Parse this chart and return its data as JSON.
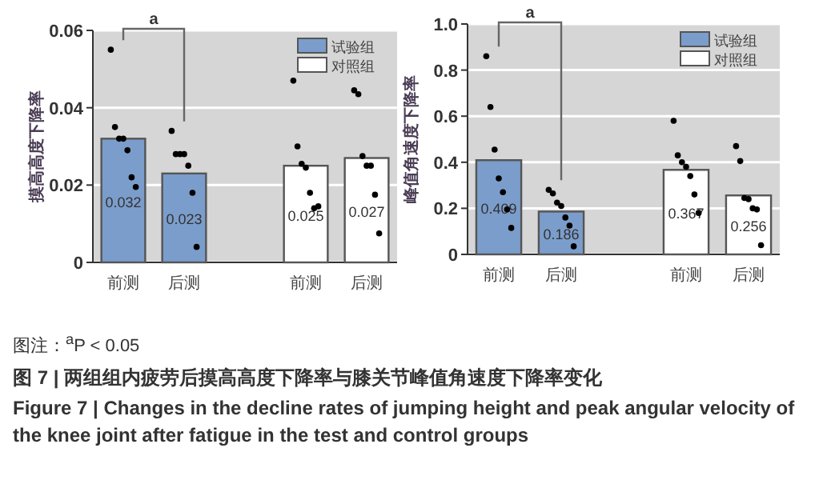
{
  "chart_data": [
    {
      "type": "bar",
      "ylabel": "摸高高度下降率",
      "categories": [
        "前测",
        "后测",
        null,
        "前测",
        "后测"
      ],
      "ylim": [
        0,
        0.06
      ],
      "yticks": [
        0,
        0.02,
        0.04,
        0.06
      ],
      "grid": "y",
      "legend": "top right",
      "annotations": [
        "a"
      ],
      "series": [
        {
          "name": "试验组",
          "color": "#7b9dcb",
          "values": [
            0.032,
            0.023,
            null,
            null,
            null
          ],
          "value_labels": [
            "0.032",
            "0.023",
            null,
            null,
            null
          ]
        },
        {
          "name": "对照组",
          "color": "#ffffff",
          "values": [
            null,
            null,
            null,
            0.025,
            0.027
          ],
          "value_labels": [
            null,
            null,
            null,
            "0.025",
            "0.027"
          ]
        },
        {
          "type": "scatter",
          "color": "#000000",
          "values": [
            0.055,
            0.034,
            null,
            0.047,
            0.0445
          ]
        },
        {
          "type": "scatter",
          "color": "#000000",
          "values": [
            0.035,
            0.028,
            null,
            0.03,
            0.0435
          ]
        },
        {
          "type": "scatter",
          "color": "#000000",
          "values": [
            0.032,
            0.028,
            null,
            0.0255,
            0.0275
          ]
        },
        {
          "type": "scatter",
          "color": "#000000",
          "values": [
            0.032,
            0.028,
            null,
            0.0245,
            0.025
          ]
        },
        {
          "type": "scatter",
          "color": "#000000",
          "values": [
            0.029,
            0.025,
            null,
            0.018,
            0.025
          ]
        },
        {
          "type": "scatter",
          "color": "#000000",
          "values": [
            0.022,
            0.018,
            null,
            0.014,
            0.0175
          ]
        },
        {
          "type": "scatter",
          "color": "#000000",
          "values": [
            0.0195,
            0.004,
            null,
            0.0145,
            0.0075
          ]
        }
      ]
    },
    {
      "type": "bar",
      "ylabel": "峰值角速度下降率",
      "categories": [
        "前测",
        "后测",
        null,
        "前测",
        "后测"
      ],
      "ylim": [
        0,
        1.0
      ],
      "yticks": [
        0,
        0.2,
        0.4,
        0.6,
        0.8,
        {
          "value": 1.0,
          "label": "1.0"
        }
      ],
      "grid": "y",
      "legend": "top right",
      "annotations": [
        "a",
        "图注：$^{a}$P < 0.05",
        "图 7 | 两组组内疲劳后摸高高度下降率与膝关节峰值角速度下降率变化",
        "Figure 7 | Changes in the decline rates of jumping height and peak angular velocity of the knee joint after fatigue in the test and control groups"
      ],
      "series": [
        {
          "name": "试验组",
          "color": "#7b9dcb",
          "values": [
            0.409,
            0.186,
            null,
            null,
            null
          ],
          "value_labels": [
            "0.409",
            "0.186",
            null,
            null,
            null
          ]
        },
        {
          "name": "对照组",
          "color": "#ffffff",
          "values": [
            null,
            null,
            null,
            0.367,
            0.256
          ],
          "value_labels": [
            null,
            null,
            null,
            "0.367",
            "0.256"
          ]
        },
        {
          "type": "scatter",
          "color": "#000000",
          "values": [
            0.86,
            0.28,
            null,
            0.58,
            0.47
          ]
        },
        {
          "type": "scatter",
          "color": "#000000",
          "values": [
            0.64,
            0.265,
            null,
            0.43,
            0.405
          ]
        },
        {
          "type": "scatter",
          "color": "#000000",
          "values": [
            0.455,
            0.225,
            null,
            0.4,
            0.245
          ]
        },
        {
          "type": "scatter",
          "color": "#000000",
          "values": [
            0.33,
            0.21,
            null,
            0.38,
            0.24
          ]
        },
        {
          "type": "scatter",
          "color": "#000000",
          "values": [
            0.27,
            0.16,
            null,
            0.34,
            0.2
          ]
        },
        {
          "type": "scatter",
          "color": "#000000",
          "values": [
            0.195,
            0.125,
            null,
            0.26,
            0.195
          ]
        },
        {
          "type": "scatter",
          "color": "#000000",
          "values": [
            0.115,
            0.035,
            null,
            0.18,
            0.04
          ]
        }
      ]
    }
  ]
}
